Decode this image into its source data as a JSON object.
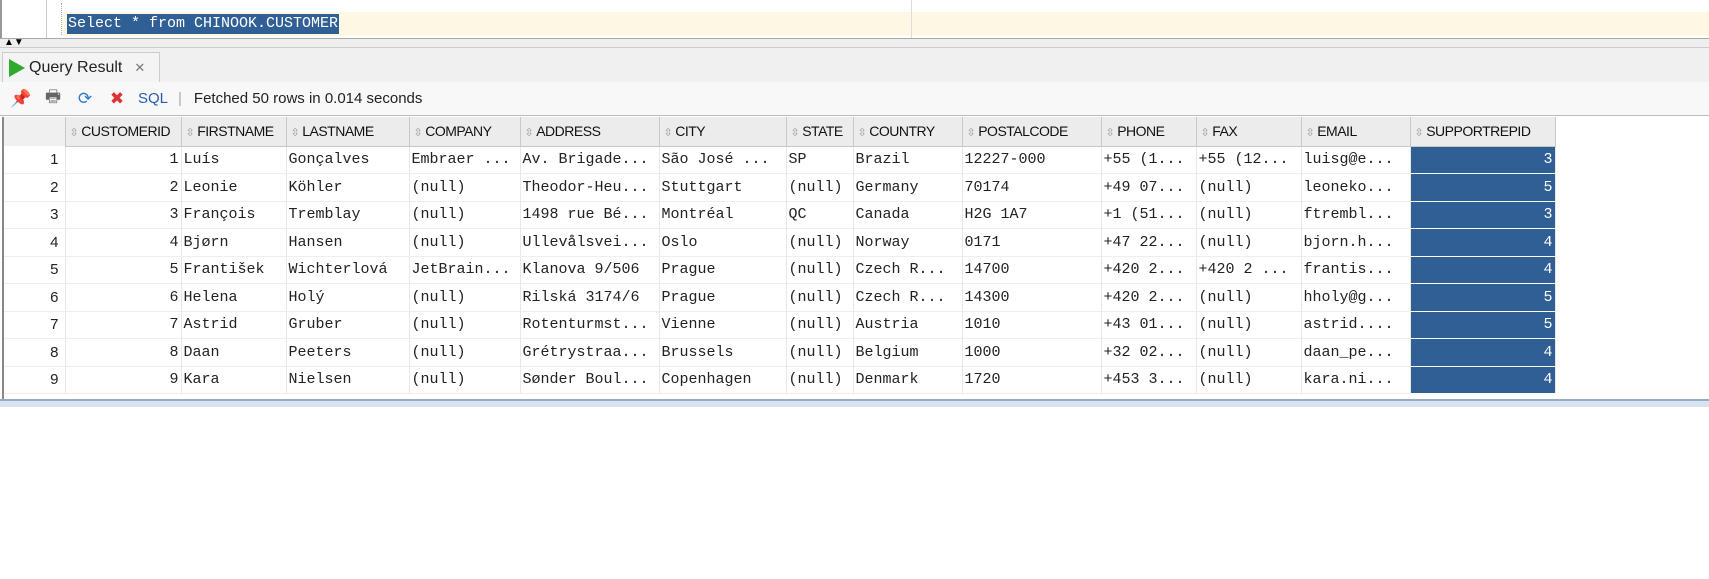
{
  "editor": {
    "sql": "Select * from CHINOOK.CUSTOMER"
  },
  "splitter": {
    "label": "▲▼"
  },
  "tab": {
    "label": "Query Result",
    "close": "✕"
  },
  "toolbar": {
    "sql_label": "SQL",
    "status": "Fetched 50 rows in 0.014 seconds",
    "icons": [
      "pin-icon",
      "print-icon",
      "refresh-icon",
      "clear-icon"
    ]
  },
  "accent": "#2f5f94",
  "columns": [
    "CUSTOMERID",
    "FIRSTNAME",
    "LASTNAME",
    "COMPANY",
    "ADDRESS",
    "CITY",
    "STATE",
    "COUNTRY",
    "POSTALCODE",
    "PHONE",
    "FAX",
    "EMAIL",
    "SUPPORTREPID"
  ],
  "rows": [
    [
      "1",
      "1",
      "Luís",
      "Gonçalves",
      "Embraer ...",
      "Av. Brigade...",
      "São José ...",
      "SP",
      "Brazil",
      "12227-000",
      "+55 (1...",
      "+55 (12...",
      "luisg@e...",
      "3"
    ],
    [
      "2",
      "2",
      "Leonie",
      "Köhler",
      "(null)",
      "Theodor-Heu...",
      "Stuttgart",
      "(null)",
      "Germany",
      "70174",
      "+49 07...",
      "(null)",
      "leoneko...",
      "5"
    ],
    [
      "3",
      "3",
      "François",
      "Tremblay",
      "(null)",
      "1498 rue Bé...",
      "Montréal",
      "QC",
      "Canada",
      "H2G 1A7",
      "+1 (51...",
      "(null)",
      "ftrembl...",
      "3"
    ],
    [
      "4",
      "4",
      "Bjørn",
      "Hansen",
      "(null)",
      "Ullevålsvei...",
      "Oslo",
      "(null)",
      "Norway",
      "0171",
      "+47 22...",
      "(null)",
      "bjorn.h...",
      "4"
    ],
    [
      "5",
      "5",
      "František",
      "Wichterlová",
      "JetBrain...",
      "Klanova 9/506",
      "Prague",
      "(null)",
      "Czech R...",
      "14700",
      "+420 2...",
      "+420 2 ...",
      "frantis...",
      "4"
    ],
    [
      "6",
      "6",
      "Helena",
      "Holý",
      "(null)",
      "Rilská 3174/6",
      "Prague",
      "(null)",
      "Czech R...",
      "14300",
      "+420 2...",
      "(null)",
      "hholy@g...",
      "5"
    ],
    [
      "7",
      "7",
      "Astrid",
      "Gruber",
      "(null)",
      "Rotenturmst...",
      "Vienne",
      "(null)",
      "Austria",
      "1010",
      "+43 01...",
      "(null)",
      "astrid....",
      "5"
    ],
    [
      "8",
      "8",
      "Daan",
      "Peeters",
      "(null)",
      "Grétrystraa...",
      "Brussels",
      "(null)",
      "Belgium",
      "1000",
      "+32 02...",
      "(null)",
      "daan_pe...",
      "4"
    ],
    [
      "9",
      "9",
      "Kara",
      "Nielsen",
      "(null)",
      "Sønder Boul...",
      "Copenhagen",
      "(null)",
      "Denmark",
      "1720",
      "+453 3...",
      "(null)",
      "kara.ni...",
      "4"
    ]
  ]
}
